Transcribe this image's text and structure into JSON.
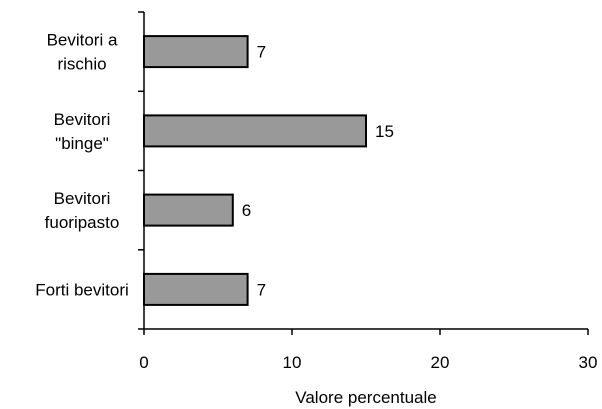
{
  "chart_data": {
    "type": "bar",
    "orientation": "horizontal",
    "categories": [
      [
        "Bevitori a",
        "rischio"
      ],
      [
        "Bevitori",
        "\"binge\""
      ],
      [
        "Bevitori",
        "fuoripasto"
      ],
      [
        "Forti bevitori"
      ]
    ],
    "values": [
      7,
      15,
      6,
      7
    ],
    "value_labels": [
      "7",
      "15",
      "6",
      "7"
    ],
    "xlabel": "Valore percentuale",
    "xlim": [
      0,
      30
    ],
    "xticks": [
      0,
      10,
      20,
      30
    ],
    "xtick_labels": [
      "0",
      "10",
      "20",
      "30"
    ],
    "grid": false,
    "bar_color": "#999999",
    "bar_edge_color": "#000000"
  }
}
